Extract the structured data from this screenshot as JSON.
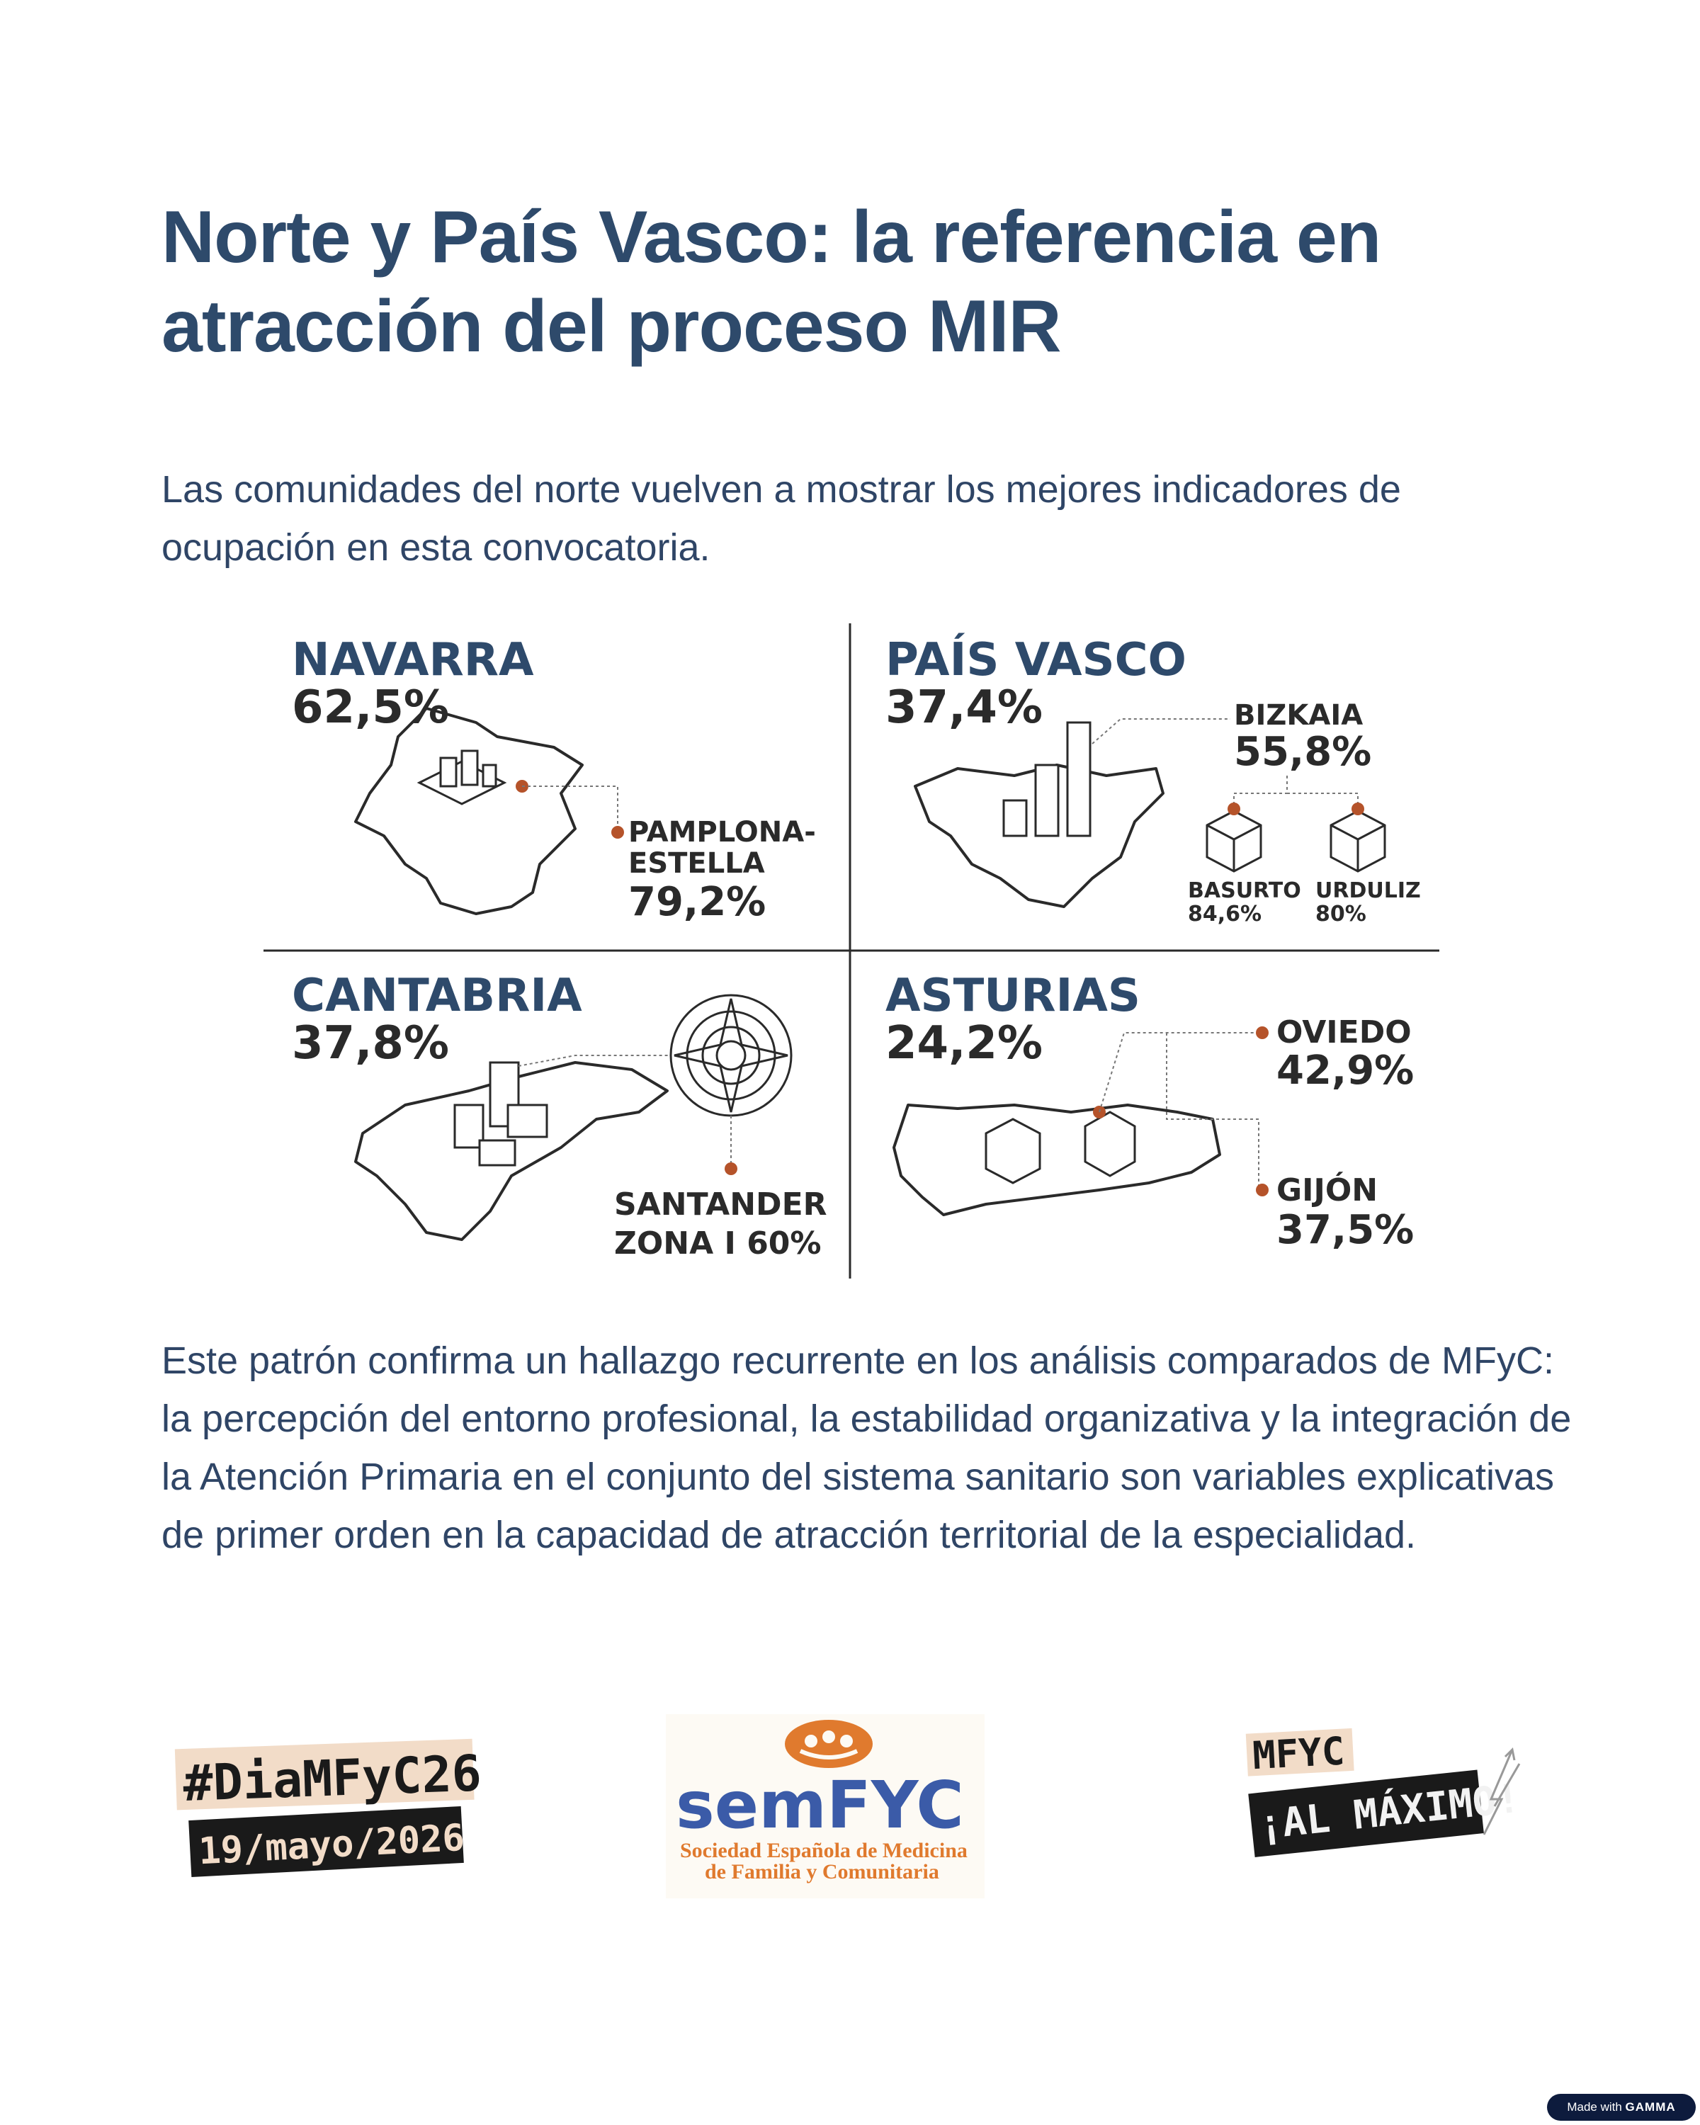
{
  "title": "Norte y País Vasco: la referencia en atracción del proceso MIR",
  "intro": "Las comunidades del norte vuelven a mostrar los mejores indicadores de ocupación en esta convocatoria.",
  "infographic": {
    "navarra": {
      "name": "NAVARRA",
      "pct": "62,5%",
      "sub_line1": "PAMPLONA-",
      "sub_line2": "ESTELLA",
      "sub_pct": "79,2%"
    },
    "pais_vasco": {
      "name": "PAÍS VASCO",
      "pct": "37,4%",
      "bizkaia": "BIZKAIA",
      "bizkaia_pct": "55,8%",
      "basurto": "BASURTO",
      "basurto_pct": "84,6%",
      "urduliz": "URDULIZ",
      "urduliz_pct": "80%"
    },
    "cantabria": {
      "name": "CANTABRIA",
      "pct": "37,8%",
      "sub_line1": "SANTANDER",
      "sub_line2": "ZONA I 60%"
    },
    "asturias": {
      "name": "ASTURIAS",
      "pct": "24,2%",
      "oviedo": "OVIEDO",
      "oviedo_pct": "42,9%",
      "gijon": "GIJÓN",
      "gijon_pct": "37,5%"
    },
    "colors": {
      "region": "#2e4a6b",
      "ink": "#2a2a2a",
      "marker": "#b5532a"
    }
  },
  "body": "Este patrón confirma un hallazgo recurrente en los análisis comparados de MFyC: la percepción del entorno profesional, la estabilidad organizativa y la integración de la Atención Primaria en el conjunto del sistema sanitario son variables explicativas de primer orden en la capacidad de atracción territorial de la especialidad.",
  "logos": {
    "dia": {
      "hashtag": "#DiaMFyC26",
      "date": "19/mayo/2026"
    },
    "semfyc": {
      "name": "semFYC",
      "line1": "Sociedad Española de Medicina",
      "line2": "de Familia y Comunitaria"
    },
    "maximo": {
      "top": "MFYC",
      "bottom": "¡AL MÁXIMO!"
    }
  },
  "footer": {
    "made_with": "Made with",
    "brand": "GAMMA"
  }
}
